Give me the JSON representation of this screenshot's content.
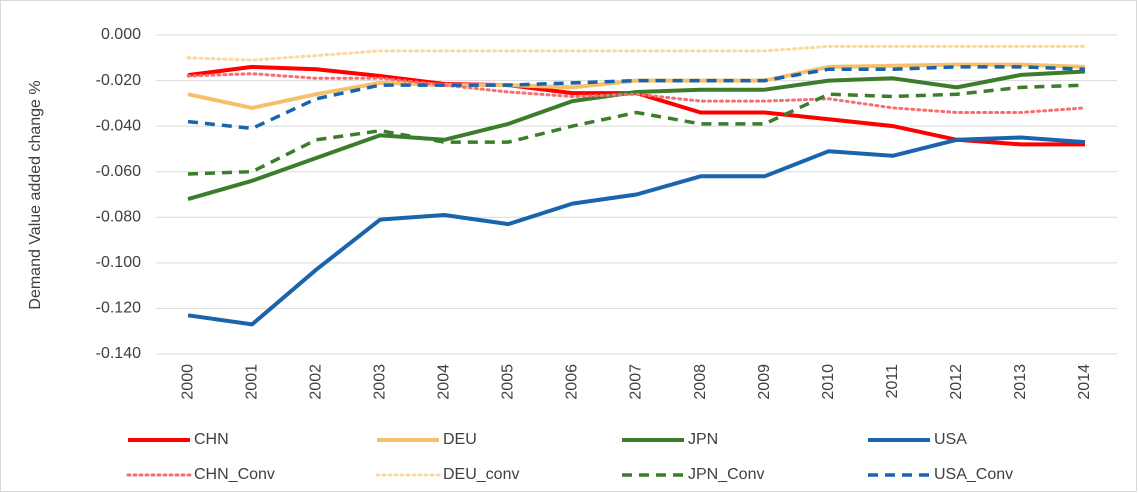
{
  "chart_data": {
    "type": "line",
    "y_label": "Demand Value added change %",
    "categories": [
      "2000",
      "2001",
      "2002",
      "2003",
      "2004",
      "2005",
      "2006",
      "2007",
      "2008",
      "2009",
      "2010",
      "2011",
      "2012",
      "2013",
      "2014"
    ],
    "ylim": [
      -0.14,
      0
    ],
    "yticks": [
      {
        "value": -0.14,
        "label": "-0.140"
      },
      {
        "value": -0.12,
        "label": "-0.120"
      },
      {
        "value": -0.1,
        "label": "-0.100"
      },
      {
        "value": -0.08,
        "label": "-0.080"
      },
      {
        "value": -0.06,
        "label": "-0.060"
      },
      {
        "value": -0.04,
        "label": "-0.040"
      },
      {
        "value": -0.02,
        "label": "-0.020"
      },
      {
        "value": 0,
        "label": "0.000"
      }
    ],
    "grid": true,
    "series": [
      {
        "name": "CHN",
        "color": "#ff0000",
        "style": "solid",
        "values": [
          -0.0176,
          -0.014,
          -0.015,
          -0.018,
          -0.0215,
          -0.022,
          -0.0255,
          -0.0255,
          -0.034,
          -0.034,
          -0.037,
          -0.04,
          -0.046,
          -0.048,
          -0.048
        ]
      },
      {
        "name": "DEU",
        "color": "#f5c06a",
        "style": "solid",
        "values": [
          -0.026,
          -0.032,
          -0.026,
          -0.021,
          -0.022,
          -0.022,
          -0.023,
          -0.02,
          -0.02,
          -0.02,
          -0.014,
          -0.0135,
          -0.013,
          -0.013,
          -0.014
        ]
      },
      {
        "name": "JPN",
        "color": "#3b7d2b",
        "style": "solid",
        "values": [
          -0.072,
          -0.064,
          -0.054,
          -0.044,
          -0.046,
          -0.039,
          -0.029,
          -0.025,
          -0.024,
          -0.024,
          -0.02,
          -0.019,
          -0.023,
          -0.0175,
          -0.016
        ]
      },
      {
        "name": "USA",
        "color": "#1a63ad",
        "style": "solid",
        "values": [
          -0.123,
          -0.127,
          -0.103,
          -0.081,
          -0.079,
          -0.083,
          -0.074,
          -0.07,
          -0.062,
          -0.062,
          -0.051,
          -0.053,
          -0.046,
          -0.045,
          -0.047
        ]
      },
      {
        "name": "CHN_Conv",
        "color": "#f47070",
        "style": "dotted",
        "values": [
          -0.018,
          -0.017,
          -0.019,
          -0.019,
          -0.022,
          -0.025,
          -0.027,
          -0.026,
          -0.029,
          -0.029,
          -0.028,
          -0.032,
          -0.034,
          -0.034,
          -0.032
        ]
      },
      {
        "name": "DEU_conv",
        "color": "#f9d9a0",
        "style": "dotted",
        "values": [
          -0.01,
          -0.011,
          -0.009,
          -0.007,
          -0.007,
          -0.007,
          -0.007,
          -0.007,
          -0.007,
          -0.007,
          -0.005,
          -0.005,
          -0.005,
          -0.005,
          -0.005
        ]
      },
      {
        "name": "JPN_Conv",
        "color": "#3b7d2b",
        "style": "dashed",
        "values": [
          -0.061,
          -0.06,
          -0.046,
          -0.042,
          -0.047,
          -0.047,
          -0.04,
          -0.034,
          -0.039,
          -0.039,
          -0.026,
          -0.027,
          -0.026,
          -0.023,
          -0.022
        ]
      },
      {
        "name": "USA_Conv",
        "color": "#1a63ad",
        "style": "dashed",
        "values": [
          -0.038,
          -0.041,
          -0.028,
          -0.022,
          -0.022,
          -0.022,
          -0.021,
          -0.02,
          -0.02,
          -0.02,
          -0.015,
          -0.015,
          -0.014,
          -0.014,
          -0.015
        ]
      }
    ]
  }
}
